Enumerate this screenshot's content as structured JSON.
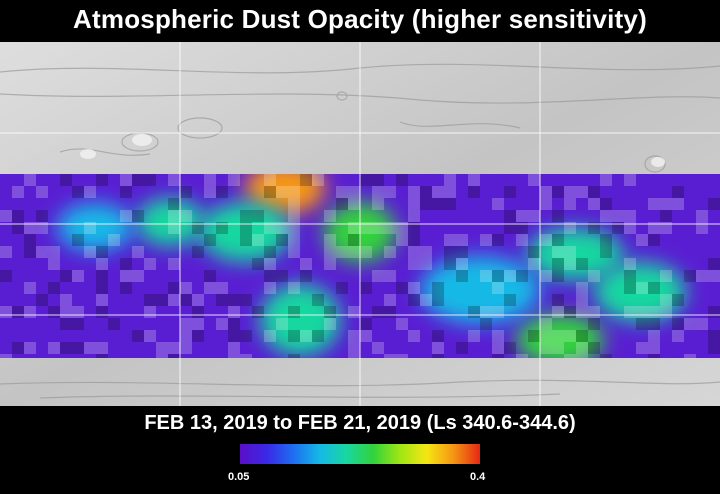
{
  "title": "Atmospheric Dust Opacity (higher sensitivity)",
  "date_range": "FEB 13, 2019 to FEB 21, 2019 (Ls 340.6-344.6)",
  "colorbar": {
    "min_label": "0.05",
    "max_label": "0.4",
    "min_value": 0.05,
    "max_value": 0.4,
    "colors": [
      "#5a0fc8",
      "#3a28e6",
      "#1e6ef0",
      "#15b9e6",
      "#19d7a0",
      "#32d23c",
      "#a0e614",
      "#f5e614",
      "#f59614",
      "#e62814"
    ]
  },
  "colors": {
    "background": "#000000",
    "surface": "#c9c9c9"
  },
  "opacity_hotspots": [
    {
      "value": 0.38
    },
    {
      "value": 0.26
    },
    {
      "value": 0.24
    },
    {
      "value": 0.22
    },
    {
      "value": 0.21
    },
    {
      "value": 0.2
    },
    {
      "value": 0.2
    },
    {
      "value": 0.19
    },
    {
      "value": 0.18
    },
    {
      "value": 0.17
    }
  ]
}
